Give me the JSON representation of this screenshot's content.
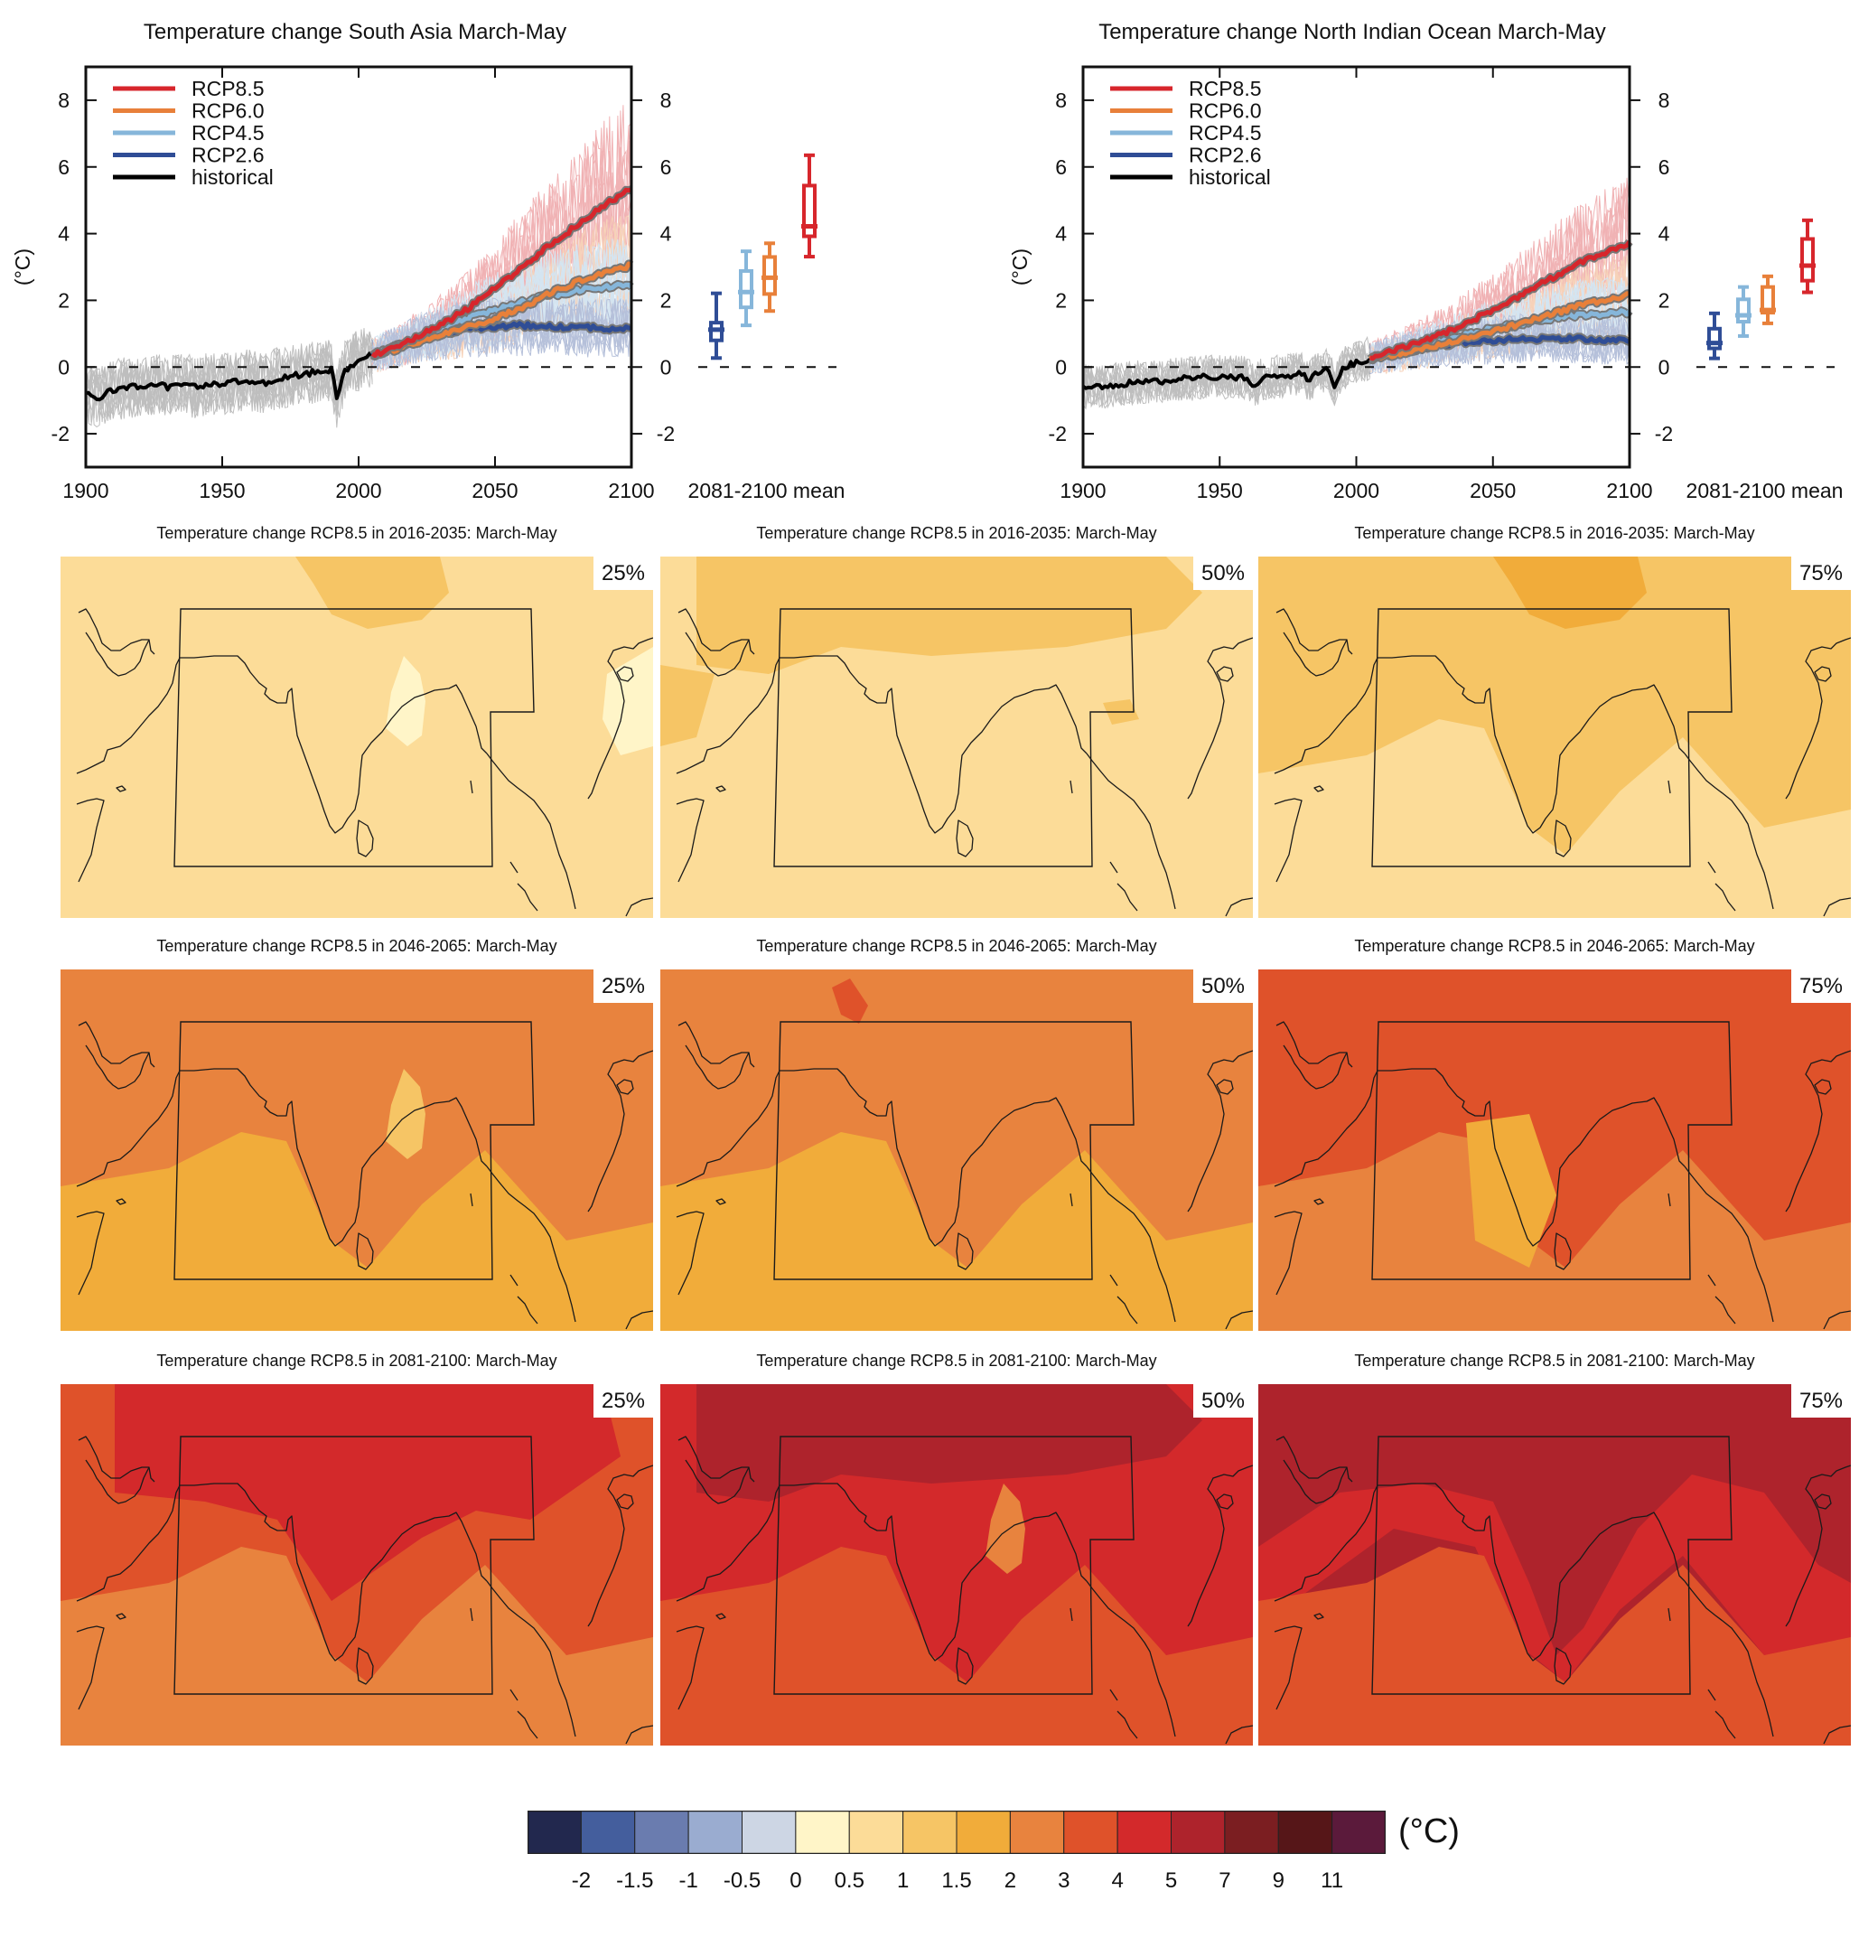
{
  "colors": {
    "rcp85": "#d7262c",
    "rcp60": "#e8803a",
    "rcp45": "#86b6da",
    "rcp26": "#2f4d96",
    "historical": "#000000",
    "hist_spread": "#8a8a8a"
  },
  "chart_data": [
    {
      "type": "line",
      "title": "Temperature change South Asia March-May",
      "xlabel": "",
      "ylabel": "(°C)",
      "xlim": [
        1900,
        2100
      ],
      "ylim": [
        -3,
        9
      ],
      "xticks": [
        "1900",
        "1950",
        "2000",
        "2050",
        "2100"
      ],
      "yticks": [
        "-2",
        "0",
        "2",
        "4",
        "6",
        "8"
      ],
      "legend_position": "top-left",
      "legend": [
        "RCP8.5",
        "RCP6.0",
        "RCP4.5",
        "RCP2.6",
        "historical"
      ],
      "series": [
        {
          "name": "historical",
          "color_key": "historical",
          "x": [
            1900,
            1905,
            1910,
            1915,
            1920,
            1925,
            1930,
            1935,
            1940,
            1945,
            1950,
            1955,
            1960,
            1965,
            1970,
            1975,
            1980,
            1985,
            1990,
            1992,
            1995,
            2000,
            2005
          ],
          "y": [
            -0.8,
            -0.9,
            -0.7,
            -0.6,
            -0.6,
            -0.5,
            -0.6,
            -0.5,
            -0.6,
            -0.5,
            -0.5,
            -0.45,
            -0.4,
            -0.5,
            -0.35,
            -0.3,
            -0.2,
            -0.15,
            -0.1,
            -0.9,
            -0.1,
            0.2,
            0.35
          ]
        },
        {
          "name": "RCP2.6",
          "color_key": "rcp26",
          "x": [
            2005,
            2010,
            2020,
            2030,
            2040,
            2050,
            2060,
            2070,
            2080,
            2090,
            2100
          ],
          "y": [
            0.35,
            0.5,
            0.8,
            1.0,
            1.15,
            1.2,
            1.25,
            1.2,
            1.2,
            1.15,
            1.2
          ]
        },
        {
          "name": "RCP4.5",
          "color_key": "rcp45",
          "x": [
            2005,
            2010,
            2020,
            2030,
            2040,
            2050,
            2060,
            2070,
            2080,
            2090,
            2100
          ],
          "y": [
            0.35,
            0.5,
            0.8,
            1.1,
            1.45,
            1.7,
            1.95,
            2.15,
            2.3,
            2.4,
            2.45
          ]
        },
        {
          "name": "RCP6.0",
          "color_key": "rcp60",
          "x": [
            2005,
            2010,
            2020,
            2030,
            2040,
            2050,
            2060,
            2070,
            2080,
            2090,
            2100
          ],
          "y": [
            0.35,
            0.45,
            0.7,
            0.95,
            1.2,
            1.45,
            1.8,
            2.2,
            2.55,
            2.85,
            3.05
          ]
        },
        {
          "name": "RCP8.5",
          "color_key": "rcp85",
          "x": [
            2005,
            2010,
            2020,
            2030,
            2040,
            2050,
            2060,
            2070,
            2080,
            2090,
            2100
          ],
          "y": [
            0.35,
            0.5,
            0.85,
            1.25,
            1.75,
            2.35,
            3.0,
            3.65,
            4.25,
            4.85,
            5.35
          ]
        }
      ],
      "boxplot_label": "2081-2100 mean",
      "boxplots": [
        {
          "name": "RCP2.6",
          "color_key": "rcp26",
          "min": 0.27,
          "q1": 0.8,
          "median": 1.12,
          "q3": 1.33,
          "max": 2.21
        },
        {
          "name": "RCP4.5",
          "color_key": "rcp45",
          "min": 1.25,
          "q1": 1.79,
          "median": 2.25,
          "q3": 2.88,
          "max": 3.47
        },
        {
          "name": "RCP6.0",
          "color_key": "rcp60",
          "min": 1.68,
          "q1": 2.19,
          "median": 2.68,
          "q3": 3.3,
          "max": 3.71
        },
        {
          "name": "RCP8.5",
          "color_key": "rcp85",
          "min": 3.31,
          "q1": 3.92,
          "median": 4.22,
          "q3": 5.44,
          "max": 6.35
        }
      ],
      "spread": {
        "hist_min": -2.5,
        "hist_max": 1.0,
        "rcp85_max_2100": 8.5,
        "rcp26_min_2100": -1.0
      }
    },
    {
      "type": "line",
      "title": "Temperature change North Indian Ocean March-May",
      "xlabel": "",
      "ylabel": "(°C)",
      "xlim": [
        1900,
        2100
      ],
      "ylim": [
        -3,
        9
      ],
      "xticks": [
        "1900",
        "1950",
        "2000",
        "2050",
        "2100"
      ],
      "yticks": [
        "-2",
        "0",
        "2",
        "4",
        "6",
        "8"
      ],
      "legend_position": "top-left",
      "legend": [
        "RCP8.5",
        "RCP6.0",
        "RCP4.5",
        "RCP2.6",
        "historical"
      ],
      "series": [
        {
          "name": "historical",
          "color_key": "historical",
          "x": [
            1900,
            1905,
            1910,
            1915,
            1920,
            1925,
            1930,
            1935,
            1940,
            1945,
            1950,
            1955,
            1960,
            1963,
            1965,
            1970,
            1975,
            1980,
            1983,
            1985,
            1990,
            1992,
            1995,
            2000,
            2005
          ],
          "y": [
            -0.6,
            -0.6,
            -0.55,
            -0.5,
            -0.45,
            -0.45,
            -0.4,
            -0.35,
            -0.35,
            -0.3,
            -0.3,
            -0.3,
            -0.3,
            -0.6,
            -0.35,
            -0.3,
            -0.25,
            -0.2,
            -0.45,
            -0.15,
            -0.1,
            -0.6,
            -0.05,
            0.15,
            0.25
          ]
        },
        {
          "name": "RCP2.6",
          "color_key": "rcp26",
          "x": [
            2005,
            2010,
            2020,
            2030,
            2040,
            2050,
            2060,
            2070,
            2080,
            2090,
            2100
          ],
          "y": [
            0.25,
            0.35,
            0.5,
            0.65,
            0.75,
            0.8,
            0.85,
            0.85,
            0.85,
            0.8,
            0.8
          ]
        },
        {
          "name": "RCP4.5",
          "color_key": "rcp45",
          "x": [
            2005,
            2010,
            2020,
            2030,
            2040,
            2050,
            2060,
            2070,
            2080,
            2090,
            2100
          ],
          "y": [
            0.25,
            0.35,
            0.55,
            0.75,
            0.95,
            1.15,
            1.3,
            1.45,
            1.55,
            1.6,
            1.65
          ]
        },
        {
          "name": "RCP6.0",
          "color_key": "rcp60",
          "x": [
            2005,
            2010,
            2020,
            2030,
            2040,
            2050,
            2060,
            2070,
            2080,
            2090,
            2100
          ],
          "y": [
            0.25,
            0.3,
            0.45,
            0.65,
            0.85,
            1.05,
            1.3,
            1.55,
            1.8,
            2.0,
            2.15
          ]
        },
        {
          "name": "RCP8.5",
          "color_key": "rcp85",
          "x": [
            2005,
            2010,
            2020,
            2030,
            2040,
            2050,
            2060,
            2070,
            2080,
            2090,
            2100
          ],
          "y": [
            0.25,
            0.4,
            0.65,
            0.95,
            1.3,
            1.7,
            2.15,
            2.6,
            3.05,
            3.4,
            3.7
          ]
        }
      ],
      "boxplot_label": "2081-2100 mean",
      "boxplots": [
        {
          "name": "RCP2.6",
          "color_key": "rcp26",
          "min": 0.26,
          "q1": 0.56,
          "median": 0.72,
          "q3": 1.15,
          "max": 1.61
        },
        {
          "name": "RCP4.5",
          "color_key": "rcp45",
          "min": 0.93,
          "q1": 1.36,
          "median": 1.55,
          "q3": 2.03,
          "max": 2.4
        },
        {
          "name": "RCP6.0",
          "color_key": "rcp60",
          "min": 1.31,
          "q1": 1.63,
          "median": 1.71,
          "q3": 2.4,
          "max": 2.72
        },
        {
          "name": "RCP8.5",
          "color_key": "rcp85",
          "min": 2.24,
          "q1": 2.59,
          "median": 3.04,
          "q3": 3.84,
          "max": 4.4
        }
      ],
      "spread": {
        "hist_min": -1.8,
        "hist_max": 0.8,
        "rcp85_max_2100": 5.2,
        "rcp26_min_2100": 0.0
      }
    },
    {
      "type": "heatmap",
      "description": "Map panels of RCP8.5 temperature change (°C), March-May, percentiles of model ensemble",
      "panels": [
        {
          "title": "Temperature change RCP8.5 in 2016-2035: March-May",
          "percentile": "25%",
          "base_level": 6,
          "patches": [
            [
              7,
              "north-high"
            ],
            [
              5,
              "bay-bengal"
            ],
            [
              5,
              "south-china-sea"
            ]
          ]
        },
        {
          "title": "Temperature change RCP8.5 in 2016-2035: March-May",
          "percentile": "50%",
          "base_level": 6,
          "patches": [
            [
              7,
              "north-band"
            ],
            [
              7,
              "arabian-north"
            ],
            [
              7,
              "myanmar-spot"
            ]
          ]
        },
        {
          "title": "Temperature change RCP8.5 in 2016-2035: March-May",
          "percentile": "75%",
          "base_level": 7,
          "patches": [
            [
              8,
              "north-high"
            ],
            [
              6,
              "south-ocean"
            ]
          ]
        },
        {
          "title": "Temperature change RCP8.5 in 2046-2065: March-May",
          "percentile": "25%",
          "base_level": 9,
          "patches": [
            [
              8,
              "south-ocean"
            ],
            [
              7,
              "bay-bengal"
            ]
          ]
        },
        {
          "title": "Temperature change RCP8.5 in 2046-2065: March-May",
          "percentile": "50%",
          "base_level": 9,
          "patches": [
            [
              8,
              "south-ocean"
            ],
            [
              10,
              "north-spot"
            ]
          ]
        },
        {
          "title": "Temperature change RCP8.5 in 2046-2065: March-May",
          "percentile": "75%",
          "base_level": 10,
          "patches": [
            [
              9,
              "south-ocean"
            ],
            [
              8,
              "south-center"
            ]
          ]
        },
        {
          "title": "Temperature change RCP8.5 in 2081-2100: March-May",
          "percentile": "25%",
          "base_level": 10,
          "patches": [
            [
              11,
              "land-north"
            ],
            [
              9,
              "south-ocean"
            ]
          ]
        },
        {
          "title": "Temperature change RCP8.5 in 2081-2100: March-May",
          "percentile": "50%",
          "base_level": 11,
          "patches": [
            [
              12,
              "north-band"
            ],
            [
              10,
              "south-ocean"
            ],
            [
              9,
              "bay-bengal"
            ]
          ]
        },
        {
          "title": "Temperature change RCP8.5 in 2081-2100: March-May",
          "percentile": "75%",
          "base_level": 12,
          "patches": [
            [
              11,
              "coast-band"
            ],
            [
              10,
              "south-ocean"
            ]
          ]
        }
      ]
    }
  ],
  "colorbar": {
    "unit": "(°C)",
    "tick_labels": [
      "-2",
      "-1.5",
      "-1",
      "-0.5",
      "0",
      "0.5",
      "1",
      "1.5",
      "2",
      "3",
      "4",
      "5",
      "7",
      "9",
      "11"
    ],
    "colors": [
      "#22284e",
      "#445e9d",
      "#6a7caf",
      "#9aacd0",
      "#cdd6e4",
      "#fff5c8",
      "#fcdc98",
      "#f6c565",
      "#f1ac3a",
      "#e8833e",
      "#df522a",
      "#d3292b",
      "#ae232c",
      "#7b1e21",
      "#561618",
      "#5b1a3b"
    ]
  }
}
